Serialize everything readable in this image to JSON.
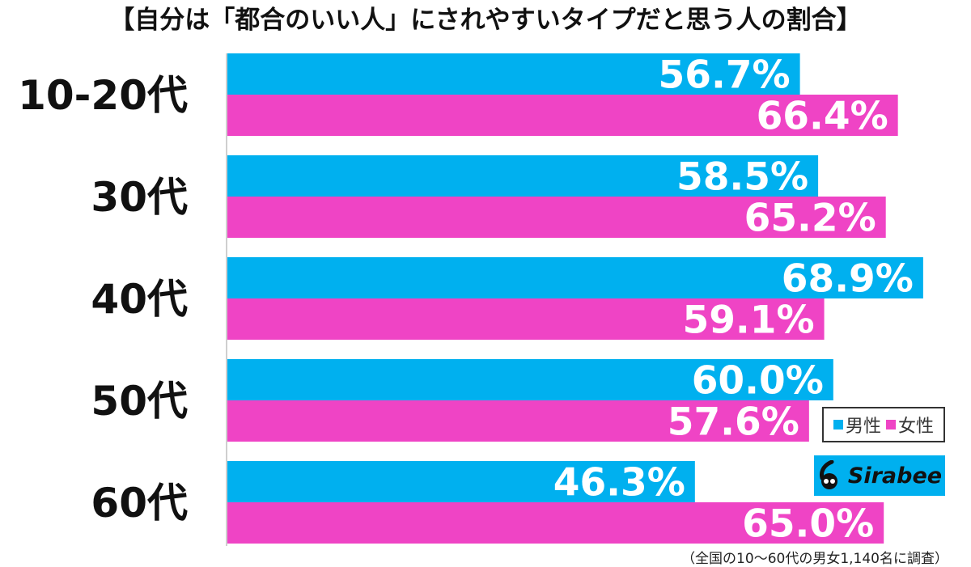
{
  "chart_data": {
    "type": "bar",
    "orientation": "horizontal",
    "title": "【自分は「都合のいい人」にされやすいタイプだと思う人の割合】",
    "categories": [
      "10-20代",
      "30代",
      "40代",
      "50代",
      "60代"
    ],
    "series": [
      {
        "name": "男性",
        "color": "#00b0ef",
        "values": [
          56.7,
          58.5,
          68.9,
          60.0,
          46.3
        ]
      },
      {
        "name": "女性",
        "color": "#ef44c5",
        "values": [
          66.4,
          65.2,
          59.1,
          57.6,
          65.0
        ]
      }
    ],
    "value_suffix": "%",
    "legend_position": "bottom-right",
    "grid": false
  },
  "logo": {
    "text": "Sirabee"
  },
  "note": "（全国の10〜60代の男女1,140名に調査）"
}
